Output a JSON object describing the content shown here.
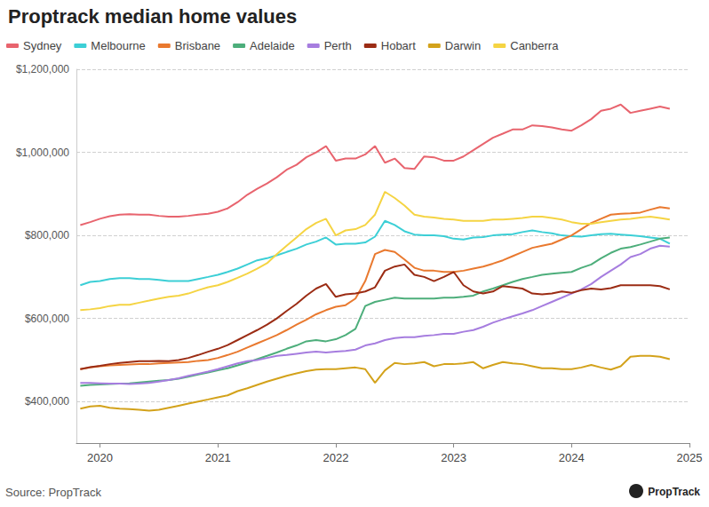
{
  "chart_data": {
    "type": "line",
    "title": "Proptrack median home values",
    "source": "Source: PropTrack",
    "credit": "PropTrack",
    "grid": true,
    "legend": "top-left",
    "x": [
      2019.833,
      2019.917,
      2020,
      2020.083,
      2020.167,
      2020.25,
      2020.333,
      2020.417,
      2020.5,
      2020.583,
      2020.667,
      2020.75,
      2020.833,
      2020.917,
      2021,
      2021.083,
      2021.167,
      2021.25,
      2021.333,
      2021.417,
      2021.5,
      2021.583,
      2021.667,
      2021.75,
      2021.833,
      2021.917,
      2022,
      2022.083,
      2022.167,
      2022.25,
      2022.333,
      2022.417,
      2022.5,
      2022.583,
      2022.667,
      2022.75,
      2022.833,
      2022.917,
      2023,
      2023.083,
      2023.167,
      2023.25,
      2023.333,
      2023.417,
      2023.5,
      2023.583,
      2023.667,
      2023.75,
      2023.833,
      2023.917,
      2024,
      2024.083,
      2024.167,
      2024.25,
      2024.333,
      2024.417,
      2024.5,
      2024.583,
      2024.667,
      2024.75,
      2024.833
    ],
    "xlim": [
      2019.8,
      2025
    ],
    "xticks": [
      2020,
      2021,
      2022,
      2023,
      2024,
      2025
    ],
    "ylim": [
      300000,
      1200000
    ],
    "yticks": [
      {
        "value": 400000,
        "label": "$400,000"
      },
      {
        "value": 600000,
        "label": "$600,000"
      },
      {
        "value": 800000,
        "label": "$800,000"
      },
      {
        "value": 1000000,
        "label": "$1,000,000"
      },
      {
        "value": 1200000,
        "label": "$1,200,000"
      }
    ],
    "series": [
      {
        "name": "Sydney",
        "color": "#e8646e",
        "values": [
          825000,
          832000,
          840000,
          846000,
          850000,
          851000,
          850000,
          850000,
          847000,
          845000,
          845000,
          847000,
          850000,
          852000,
          857000,
          865000,
          880000,
          898000,
          912000,
          925000,
          940000,
          958000,
          970000,
          988000,
          1000000,
          1015000,
          980000,
          985000,
          985000,
          995000,
          1015000,
          975000,
          985000,
          962000,
          960000,
          990000,
          988000,
          980000,
          980000,
          990000,
          1005000,
          1020000,
          1035000,
          1045000,
          1055000,
          1055000,
          1065000,
          1063000,
          1060000,
          1055000,
          1052000,
          1065000,
          1080000,
          1100000,
          1105000,
          1115000,
          1095000,
          1100000,
          1105000,
          1110000,
          1105000
        ]
      },
      {
        "name": "Melbourne",
        "color": "#3ccfd6",
        "values": [
          680000,
          688000,
          690000,
          695000,
          697000,
          697000,
          695000,
          695000,
          693000,
          690000,
          690000,
          690000,
          695000,
          700000,
          705000,
          712000,
          720000,
          730000,
          740000,
          745000,
          752000,
          760000,
          768000,
          778000,
          785000,
          795000,
          778000,
          780000,
          780000,
          783000,
          797000,
          835000,
          825000,
          810000,
          802000,
          800000,
          800000,
          798000,
          792000,
          790000,
          795000,
          796000,
          800000,
          802000,
          803000,
          808000,
          812000,
          808000,
          805000,
          800000,
          798000,
          797000,
          800000,
          803000,
          804000,
          802000,
          800000,
          798000,
          795000,
          792000,
          780000
        ]
      },
      {
        "name": "Brisbane",
        "color": "#e9792f",
        "values": [
          478000,
          482000,
          485000,
          487000,
          488000,
          489000,
          490000,
          490000,
          492000,
          493000,
          494000,
          495000,
          498000,
          500000,
          505000,
          512000,
          520000,
          530000,
          540000,
          550000,
          560000,
          572000,
          585000,
          597000,
          610000,
          620000,
          628000,
          632000,
          648000,
          690000,
          755000,
          765000,
          760000,
          742000,
          722000,
          715000,
          715000,
          712000,
          712000,
          715000,
          720000,
          725000,
          732000,
          740000,
          750000,
          760000,
          770000,
          775000,
          780000,
          790000,
          800000,
          815000,
          830000,
          840000,
          850000,
          852000,
          853000,
          855000,
          862000,
          868000,
          865000
        ]
      },
      {
        "name": "Adelaide",
        "color": "#4dae7b",
        "values": [
          438000,
          440000,
          441000,
          442000,
          443000,
          444000,
          446000,
          448000,
          450000,
          452000,
          455000,
          460000,
          465000,
          470000,
          475000,
          480000,
          487000,
          494000,
          502000,
          510000,
          518000,
          527000,
          535000,
          545000,
          548000,
          545000,
          550000,
          560000,
          575000,
          630000,
          640000,
          645000,
          650000,
          648000,
          648000,
          648000,
          648000,
          650000,
          650000,
          652000,
          655000,
          665000,
          672000,
          680000,
          688000,
          695000,
          700000,
          705000,
          708000,
          710000,
          712000,
          722000,
          730000,
          745000,
          758000,
          768000,
          772000,
          778000,
          785000,
          792000,
          795000
        ]
      },
      {
        "name": "Perth",
        "color": "#a67ddf",
        "values": [
          445000,
          445000,
          444000,
          443000,
          443000,
          442000,
          443000,
          445000,
          448000,
          452000,
          456000,
          462000,
          467000,
          472000,
          478000,
          485000,
          492000,
          497000,
          500000,
          505000,
          510000,
          512000,
          515000,
          518000,
          520000,
          518000,
          520000,
          522000,
          525000,
          535000,
          540000,
          548000,
          553000,
          555000,
          555000,
          558000,
          560000,
          563000,
          563000,
          568000,
          572000,
          580000,
          590000,
          598000,
          605000,
          612000,
          620000,
          630000,
          640000,
          650000,
          660000,
          670000,
          683000,
          700000,
          715000,
          730000,
          748000,
          755000,
          768000,
          775000,
          773000
        ]
      },
      {
        "name": "Hobart",
        "color": "#9b2c14",
        "values": [
          478000,
          483000,
          486000,
          490000,
          493000,
          495000,
          497000,
          497000,
          498000,
          497000,
          500000,
          505000,
          512000,
          520000,
          527000,
          536000,
          548000,
          560000,
          572000,
          585000,
          600000,
          618000,
          635000,
          655000,
          672000,
          683000,
          652000,
          658000,
          660000,
          665000,
          675000,
          715000,
          725000,
          730000,
          705000,
          700000,
          690000,
          700000,
          712000,
          680000,
          665000,
          660000,
          665000,
          678000,
          675000,
          672000,
          660000,
          658000,
          660000,
          665000,
          662000,
          668000,
          672000,
          670000,
          673000,
          680000,
          680000,
          680000,
          680000,
          678000,
          670000
        ]
      },
      {
        "name": "Darwin",
        "color": "#d3a21b",
        "values": [
          383000,
          388000,
          390000,
          385000,
          383000,
          382000,
          380000,
          378000,
          380000,
          385000,
          390000,
          395000,
          400000,
          405000,
          410000,
          415000,
          425000,
          432000,
          440000,
          448000,
          455000,
          462000,
          468000,
          473000,
          477000,
          478000,
          478000,
          480000,
          482000,
          478000,
          445000,
          475000,
          493000,
          490000,
          492000,
          495000,
          485000,
          490000,
          490000,
          492000,
          495000,
          480000,
          488000,
          495000,
          492000,
          490000,
          485000,
          480000,
          480000,
          478000,
          478000,
          482000,
          488000,
          482000,
          477000,
          485000,
          508000,
          510000,
          510000,
          508000,
          502000
        ]
      },
      {
        "name": "Canberra",
        "color": "#f5d443",
        "values": [
          620000,
          622000,
          625000,
          630000,
          633000,
          633000,
          638000,
          643000,
          648000,
          652000,
          655000,
          660000,
          668000,
          675000,
          680000,
          688000,
          698000,
          708000,
          720000,
          733000,
          755000,
          775000,
          795000,
          815000,
          830000,
          840000,
          800000,
          812000,
          815000,
          825000,
          850000,
          905000,
          890000,
          872000,
          850000,
          845000,
          843000,
          840000,
          838000,
          835000,
          835000,
          835000,
          838000,
          838000,
          840000,
          842000,
          845000,
          845000,
          842000,
          838000,
          832000,
          828000,
          828000,
          832000,
          835000,
          838000,
          840000,
          843000,
          845000,
          842000,
          838000
        ]
      }
    ]
  }
}
